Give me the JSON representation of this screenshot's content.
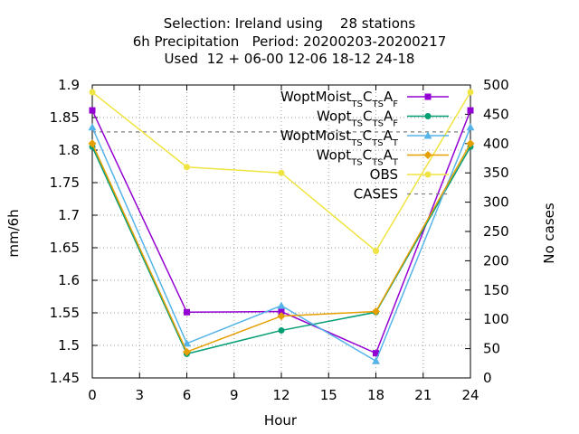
{
  "title_lines": [
    "Selection: Ireland using    28 stations",
    "6h Precipitation   Period: 20200203-20200217",
    "Used  12 + 06-00 12-06 18-12 24-18"
  ],
  "chart_data": {
    "type": "line",
    "xlabel": "Hour",
    "ylabel": "mm/6h",
    "y2label": "No cases",
    "xlim": [
      0,
      24
    ],
    "ylim": [
      1.45,
      1.9
    ],
    "y2lim": [
      0,
      500
    ],
    "x_ticks": [
      "0",
      "3",
      "6",
      "9",
      "12",
      "15",
      "18",
      "21",
      "24"
    ],
    "y_ticks": [
      "1.45",
      "1.5",
      "1.55",
      "1.6",
      "1.65",
      "1.7",
      "1.75",
      "1.8",
      "1.85",
      "1.9"
    ],
    "y2_ticks": [
      "0",
      "50",
      "100",
      "150",
      "200",
      "250",
      "300",
      "350",
      "400",
      "450",
      "500"
    ],
    "grid": true,
    "legend_position": "top-right",
    "x": [
      0,
      6,
      12,
      18,
      24
    ],
    "series": [
      {
        "name": "WoptMoist_TSC_TSA_F",
        "base": "WoptMoist",
        "sub1": "TS",
        "mid": "C",
        "sub2": "TS",
        "tail": "A",
        "sub3": "F",
        "color": "#9400d3",
        "marker": "square",
        "axis": "y",
        "values": [
          1.861,
          1.551,
          1.552,
          1.488,
          1.861
        ]
      },
      {
        "name": "Wopt_TSC_TSA_F",
        "base": "Wopt",
        "sub1": "TS",
        "mid": "C",
        "sub2": "TS",
        "tail": "A",
        "sub3": "F",
        "color": "#009e73",
        "marker": "circle",
        "axis": "y",
        "values": [
          1.805,
          1.487,
          1.523,
          1.551,
          1.805
        ]
      },
      {
        "name": "WoptMoist_TSC_TSA_T",
        "base": "WoptMoist",
        "sub1": "TS",
        "mid": "C",
        "sub2": "TS",
        "tail": "A",
        "sub3": "T",
        "color": "#56b4e9",
        "marker": "triangle",
        "axis": "y",
        "values": [
          1.835,
          1.503,
          1.561,
          1.476,
          1.835
        ]
      },
      {
        "name": "Wopt_TSC_TSA_T",
        "base": "Wopt",
        "sub1": "TS",
        "mid": "C",
        "sub2": "TS",
        "tail": "A",
        "sub3": "T",
        "color": "#e69f00",
        "marker": "diamond",
        "axis": "y",
        "values": [
          1.81,
          1.49,
          1.545,
          1.552,
          1.81
        ]
      },
      {
        "name": "OBS",
        "color": "#f0e442",
        "marker": "circle",
        "axis": "y",
        "values": [
          1.889,
          1.774,
          1.765,
          1.645,
          1.889
        ]
      },
      {
        "name": "CASES",
        "color": "#808080",
        "dashed": true,
        "axis": "y2",
        "values": [
          420,
          420,
          420,
          420,
          420
        ]
      }
    ]
  }
}
